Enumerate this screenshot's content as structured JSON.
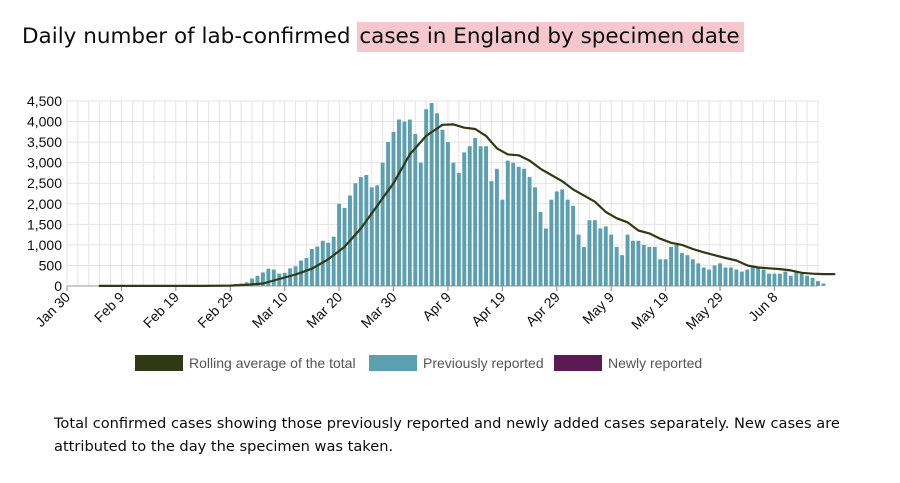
{
  "title": {
    "prefix": "Daily number of lab-confirmed ",
    "highlight": "cases in England by specimen date"
  },
  "colors": {
    "highlight": "#f6c7cc",
    "rolling": "#2f3a14",
    "previous": "#5b9fb0",
    "newly": "#5c1a55",
    "grid": "#e3e3e3"
  },
  "chart_data": {
    "type": "bar",
    "ylim": [
      0,
      4500
    ],
    "yticks": [
      "0",
      "500",
      "1,000",
      "1,500",
      "2,000",
      "2,500",
      "3,000",
      "3,500",
      "4,000",
      "4,500"
    ],
    "xticks": [
      {
        "day": 0,
        "label": "Jan 30"
      },
      {
        "day": 10,
        "label": "Feb 9"
      },
      {
        "day": 20,
        "label": "Feb 19"
      },
      {
        "day": 30,
        "label": "Feb 29"
      },
      {
        "day": 40,
        "label": "Mar 10"
      },
      {
        "day": 50,
        "label": "Mar 20"
      },
      {
        "day": 60,
        "label": "Mar 30"
      },
      {
        "day": 70,
        "label": "Apr 9"
      },
      {
        "day": 80,
        "label": "Apr 19"
      },
      {
        "day": 90,
        "label": "Apr 29"
      },
      {
        "day": 100,
        "label": "May 9"
      },
      {
        "day": 110,
        "label": "May 19"
      },
      {
        "day": 120,
        "label": "May 29"
      },
      {
        "day": 130,
        "label": "Jun 8"
      }
    ],
    "start_day": 6,
    "day_range": [
      0,
      138
    ],
    "previously_reported": [
      2,
      2,
      2,
      2,
      2,
      2,
      2,
      2,
      2,
      2,
      2,
      2,
      2,
      2,
      2,
      2,
      2,
      2,
      2,
      5,
      5,
      10,
      15,
      25,
      35,
      50,
      60,
      90,
      180,
      250,
      330,
      420,
      400,
      300,
      320,
      430,
      480,
      620,
      680,
      900,
      960,
      1100,
      1050,
      1200,
      2000,
      1900,
      2200,
      2500,
      2650,
      2700,
      2400,
      2450,
      3000,
      3500,
      3750,
      4050,
      4000,
      4050,
      3700,
      3000,
      4300,
      4450,
      4200,
      3800,
      3500,
      3000,
      2750,
      3250,
      3400,
      3600,
      3400,
      3400,
      2550,
      2850,
      2100,
      3050,
      3000,
      2900,
      2850,
      2650,
      2400,
      1800,
      1400,
      2100,
      2300,
      2350,
      2100,
      1950,
      1250,
      950,
      1600,
      1600,
      1400,
      1450,
      1250,
      950,
      750,
      1250,
      1100,
      1100,
      1000,
      950,
      950,
      650,
      650,
      950,
      1000,
      800,
      750,
      650,
      550,
      450,
      400,
      500,
      550,
      450,
      450,
      400,
      350,
      400,
      450,
      450,
      400,
      300,
      300,
      300,
      350,
      250,
      350,
      300,
      250,
      200,
      120,
      60
    ],
    "newly_reported": [
      0,
      0,
      0,
      0,
      0,
      0,
      0,
      0,
      0,
      0,
      0,
      0,
      0,
      0,
      0,
      0,
      0,
      0,
      0,
      0,
      0,
      0,
      0,
      0,
      0,
      0,
      0,
      0,
      0,
      0,
      0,
      0,
      0,
      0,
      0,
      0,
      0,
      0,
      0,
      0,
      0,
      0,
      0,
      0,
      0,
      0,
      0,
      0,
      0,
      0,
      0,
      0,
      0,
      0,
      0,
      0,
      0,
      0,
      0,
      0,
      0,
      0,
      0,
      0,
      0,
      0,
      0,
      0,
      0,
      0,
      0,
      0,
      0,
      0,
      0,
      0,
      0,
      0,
      0,
      0,
      0,
      0,
      0,
      0,
      0,
      0,
      0,
      0,
      0,
      0,
      0,
      0,
      0,
      0,
      0,
      0,
      0,
      0,
      0,
      0,
      0,
      0,
      0,
      0,
      0,
      0,
      0,
      0,
      0,
      0,
      0,
      0,
      0,
      0,
      0,
      0,
      0,
      0,
      0,
      0,
      0,
      0,
      0,
      0,
      0,
      0,
      0,
      0,
      0,
      0,
      0,
      0,
      0,
      0,
      0,
      0,
      0,
      0,
      10,
      30,
      50,
      80
    ],
    "rolling_average": [
      [
        6,
        2
      ],
      [
        20,
        2
      ],
      [
        25,
        3
      ],
      [
        30,
        10
      ],
      [
        33,
        30
      ],
      [
        36,
        60
      ],
      [
        39,
        170
      ],
      [
        42,
        280
      ],
      [
        45,
        420
      ],
      [
        48,
        650
      ],
      [
        51,
        950
      ],
      [
        54,
        1400
      ],
      [
        57,
        1950
      ],
      [
        60,
        2500
      ],
      [
        63,
        3200
      ],
      [
        66,
        3650
      ],
      [
        69,
        3920
      ],
      [
        71,
        3930
      ],
      [
        73,
        3850
      ],
      [
        75,
        3820
      ],
      [
        77,
        3650
      ],
      [
        79,
        3350
      ],
      [
        81,
        3200
      ],
      [
        83,
        3180
      ],
      [
        85,
        3050
      ],
      [
        87,
        2850
      ],
      [
        89,
        2700
      ],
      [
        91,
        2550
      ],
      [
        93,
        2350
      ],
      [
        95,
        2200
      ],
      [
        97,
        2050
      ],
      [
        99,
        1800
      ],
      [
        101,
        1650
      ],
      [
        103,
        1550
      ],
      [
        105,
        1350
      ],
      [
        107,
        1280
      ],
      [
        109,
        1150
      ],
      [
        111,
        1050
      ],
      [
        113,
        1000
      ],
      [
        115,
        900
      ],
      [
        117,
        820
      ],
      [
        119,
        750
      ],
      [
        121,
        680
      ],
      [
        123,
        620
      ],
      [
        125,
        500
      ],
      [
        127,
        450
      ],
      [
        129,
        430
      ],
      [
        131,
        410
      ],
      [
        133,
        380
      ],
      [
        135,
        320
      ],
      [
        137,
        300
      ],
      [
        139,
        290
      ],
      [
        141,
        290
      ]
    ],
    "legend": [
      {
        "label": "Rolling average of the total",
        "key": "rolling"
      },
      {
        "label": "Previously reported",
        "key": "previous"
      },
      {
        "label": "Newly reported",
        "key": "newly"
      }
    ]
  },
  "note": "Total confirmed cases showing those previously reported and newly added cases separately. New cases are attributed to the day the specimen was taken."
}
